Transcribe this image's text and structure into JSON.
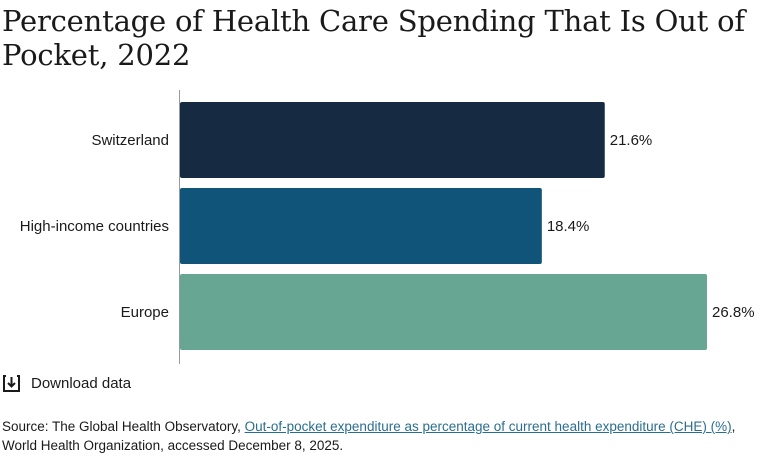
{
  "title": "Percentage of Health Care Spending That Is Out of Pocket, 2022",
  "download_label": "Download data",
  "source": {
    "prefix": "Source: The Global Health Observatory, ",
    "link_text": "Out-of-pocket expenditure as percentage of current health expenditure (CHE) (%)",
    "suffix": ", World Health Organization, accessed December 8, 2025."
  },
  "colors": {
    "axis": "#999999",
    "label_text": "#1a1a1a"
  },
  "chart_data": {
    "type": "bar",
    "orientation": "horizontal",
    "categories": [
      "Switzerland",
      "High-income countries",
      "Europe"
    ],
    "values": [
      21.6,
      18.4,
      26.8
    ],
    "data_labels": [
      "21.6%",
      "18.4%",
      "26.8%"
    ],
    "bar_colors": [
      "#162b42",
      "#115479",
      "#67a692"
    ],
    "xlim": [
      0,
      26.8
    ],
    "grid": false,
    "legend": "none"
  }
}
